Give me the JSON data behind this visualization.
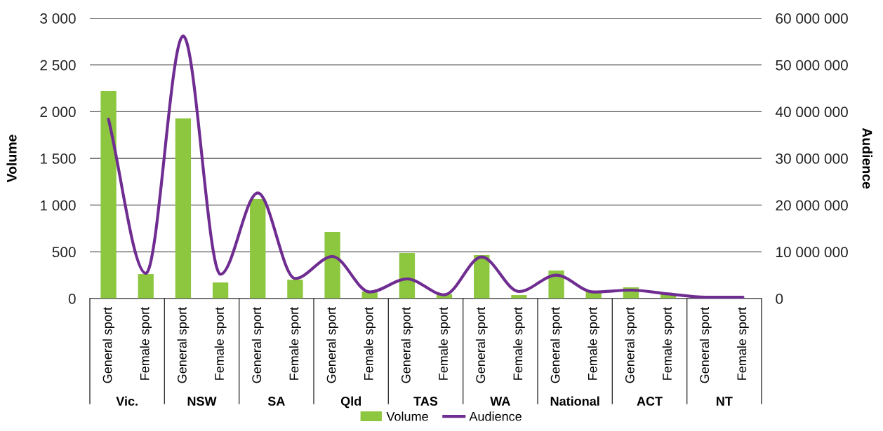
{
  "chart_data": {
    "type": "bar",
    "xlabel": null,
    "ylabel": "Volume",
    "y2label": "Audience",
    "categories": [
      "General sport",
      "Female sport",
      "General sport",
      "Female sport",
      "General sport",
      "Female sport",
      "General sport",
      "Female sport",
      "General sport",
      "Female sport",
      "General sport",
      "Female sport",
      "General sport",
      "Female sport",
      "General sport",
      "Female sport",
      "General sport",
      "Female sport"
    ],
    "annotations": [
      "Vic.",
      "NSW",
      "SA",
      "Qld",
      "TAS",
      "WA",
      "National",
      "ACT",
      "NT"
    ],
    "series": [
      {
        "name": "Volume",
        "color": "#8dc63f",
        "values": [
          2220,
          262,
          1928,
          172,
          1065,
          202,
          712,
          75,
          487,
          45,
          465,
          37,
          300,
          75,
          120,
          52,
          5,
          null
        ]
      },
      {
        "name": "Audience",
        "type": "line",
        "axis": "y2",
        "color": "#6f2c91",
        "values": [
          38400000,
          5400000,
          56200000,
          5200000,
          22600000,
          4300000,
          9000000,
          1400000,
          4200000,
          800000,
          8900000,
          1500000,
          5000000,
          1400000,
          1800000,
          1000000,
          300000,
          300000
        ]
      }
    ],
    "ylim": [
      0,
      3000
    ],
    "yticks": [
      {
        "value": 0,
        "label": "0"
      },
      {
        "value": 500,
        "label": "500"
      },
      {
        "value": 1000,
        "label": "1 000"
      },
      {
        "value": 1500,
        "label": "1 500"
      },
      {
        "value": 2000,
        "label": "2 000"
      },
      {
        "value": 2500,
        "label": "2 500"
      },
      {
        "value": 3000,
        "label": "3 000"
      }
    ],
    "y2lim": [
      0,
      60000000
    ],
    "y2ticks": [
      {
        "value": 0,
        "label": "0"
      },
      {
        "value": 10000000,
        "label": "10 000 000"
      },
      {
        "value": 20000000,
        "label": "20 000 000"
      },
      {
        "value": 30000000,
        "label": "30 000 000"
      },
      {
        "value": 40000000,
        "label": "40 000 000"
      },
      {
        "value": 50000000,
        "label": "50 000 000"
      },
      {
        "value": 60000000,
        "label": "60 000 000"
      }
    ],
    "grid": "y",
    "legend": "bottom",
    "line_style": "solid",
    "marker": "none"
  }
}
